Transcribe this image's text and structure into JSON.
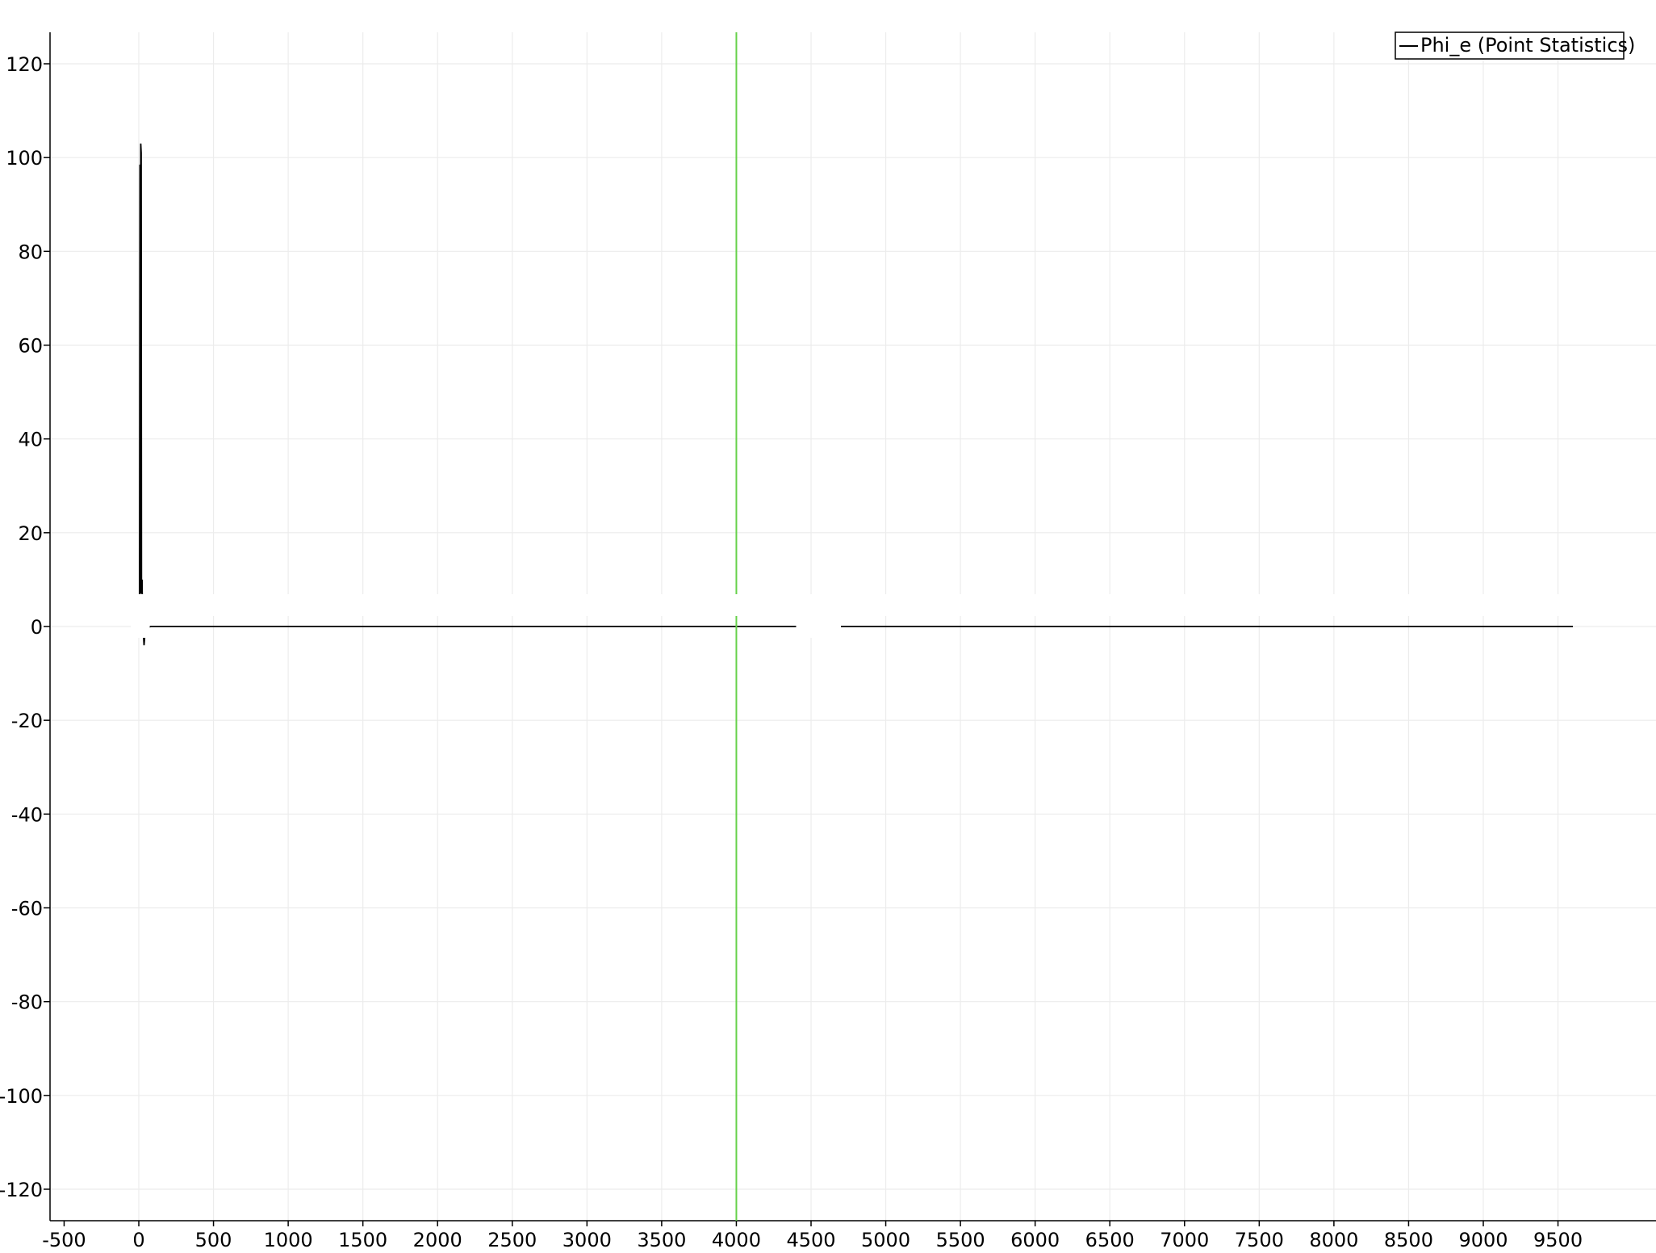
{
  "chart_data": {
    "type": "line",
    "title": "",
    "xlabel": "",
    "ylabel": "",
    "xlim": [
      -550,
      9600
    ],
    "ylim": [
      -126,
      126
    ],
    "x_ticks": [
      -500,
      0,
      500,
      1000,
      1500,
      2000,
      2500,
      3000,
      3500,
      4000,
      4500,
      5000,
      5500,
      6000,
      6500,
      7000,
      7500,
      8000,
      8500,
      9000,
      9500
    ],
    "x_tick_labels": [
      "-500",
      "0",
      "500",
      "1000",
      "1500",
      "2000",
      "2500",
      "3000",
      "3500",
      "4000",
      "4500",
      "5000",
      "5500",
      "6000",
      "6500",
      "7000",
      "7500",
      "8000",
      "8500",
      "9000",
      "9500"
    ],
    "y_ticks": [
      -120,
      -100,
      -80,
      -60,
      -40,
      -20,
      0,
      20,
      40,
      60,
      80,
      100,
      120
    ],
    "y_tick_labels": [
      "-120",
      "-100",
      "-80",
      "-60",
      "-40",
      "-20",
      "0",
      "20",
      "40",
      "60",
      "80",
      "100",
      "120"
    ],
    "grid": true,
    "legend": {
      "position": "top-right",
      "entries": [
        "Phi_e (Point Statistics)"
      ]
    },
    "series": [
      {
        "name": "Phi_e (Point Statistics)",
        "color": "#000000",
        "points": [
          [
            -5,
            0
          ],
          [
            5,
            0
          ],
          [
            8,
            98.5
          ],
          [
            10,
            7
          ],
          [
            13,
            103
          ],
          [
            16,
            101
          ],
          [
            18,
            7
          ],
          [
            22,
            10
          ],
          [
            25,
            0
          ],
          [
            30,
            -1
          ],
          [
            35,
            -4
          ],
          [
            40,
            -2
          ],
          [
            45,
            -0.5
          ],
          [
            60,
            -0.2
          ],
          [
            80,
            0
          ],
          [
            120,
            0
          ],
          [
            500,
            0
          ],
          [
            1000,
            0
          ],
          [
            2000,
            0
          ],
          [
            3000,
            0
          ],
          [
            4000,
            0
          ],
          [
            5000,
            0
          ],
          [
            6000,
            0
          ],
          [
            7000,
            0
          ],
          [
            8000,
            0
          ],
          [
            9000,
            0
          ],
          [
            9500,
            0
          ],
          [
            9600,
            0
          ]
        ]
      }
    ],
    "reference_lines": [
      {
        "type": "vertical",
        "x": 4000,
        "color": "#66d14a"
      }
    ],
    "colors": {
      "axis": "#000000",
      "grid": "#ececec",
      "series": "#000000",
      "cursor": "#66d14a"
    }
  }
}
